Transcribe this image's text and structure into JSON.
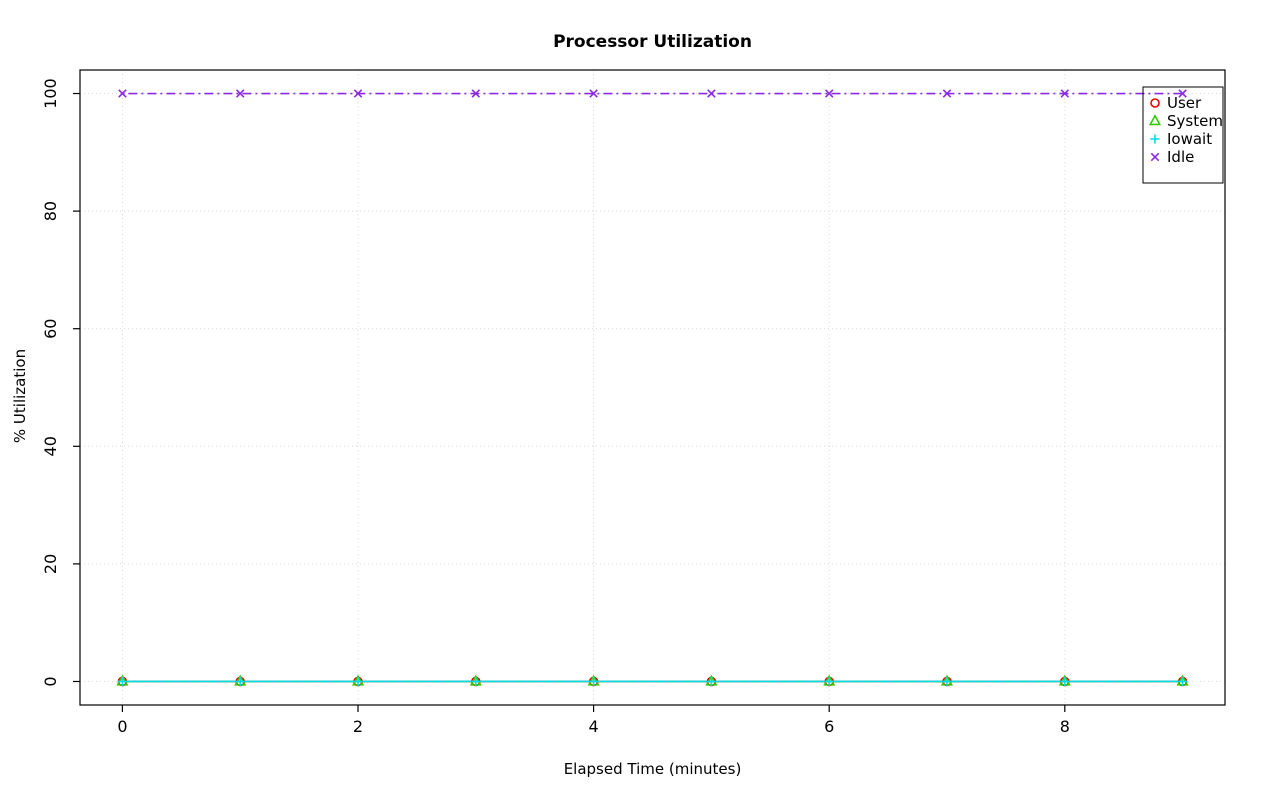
{
  "chart_data": {
    "type": "line",
    "title": "Processor Utilization",
    "xlabel": "Elapsed Time (minutes)",
    "ylabel": "% Utilization",
    "x": [
      0,
      1,
      2,
      3,
      4,
      5,
      6,
      7,
      8,
      9
    ],
    "xlim": [
      0,
      9
    ],
    "ylim": [
      0,
      100
    ],
    "x_ticks": [
      0,
      2,
      4,
      6,
      8
    ],
    "y_ticks": [
      0,
      20,
      40,
      60,
      80,
      100
    ],
    "grid": true,
    "grid_color": "#d9d9d9",
    "legend_position": "top-right",
    "series": [
      {
        "name": "User",
        "color": "#ee0000",
        "marker": "circle",
        "line_style": "solid",
        "values": [
          0,
          0,
          0,
          0,
          0,
          0,
          0,
          0,
          0,
          0
        ]
      },
      {
        "name": "System",
        "color": "#33cc00",
        "marker": "triangle",
        "line_style": "dashed",
        "values": [
          0,
          0,
          0,
          0,
          0,
          0,
          0,
          0,
          0,
          0
        ]
      },
      {
        "name": "Iowait",
        "color": "#00dcee",
        "marker": "plus",
        "line_style": "solid",
        "values": [
          0,
          0,
          0,
          0,
          0,
          0,
          0,
          0,
          0,
          0
        ]
      },
      {
        "name": "Idle",
        "color": "#8a2be2",
        "marker": "x",
        "line_style": "dotdash",
        "values": [
          100,
          100,
          100,
          100,
          100,
          100,
          100,
          100,
          100,
          100
        ]
      }
    ]
  }
}
